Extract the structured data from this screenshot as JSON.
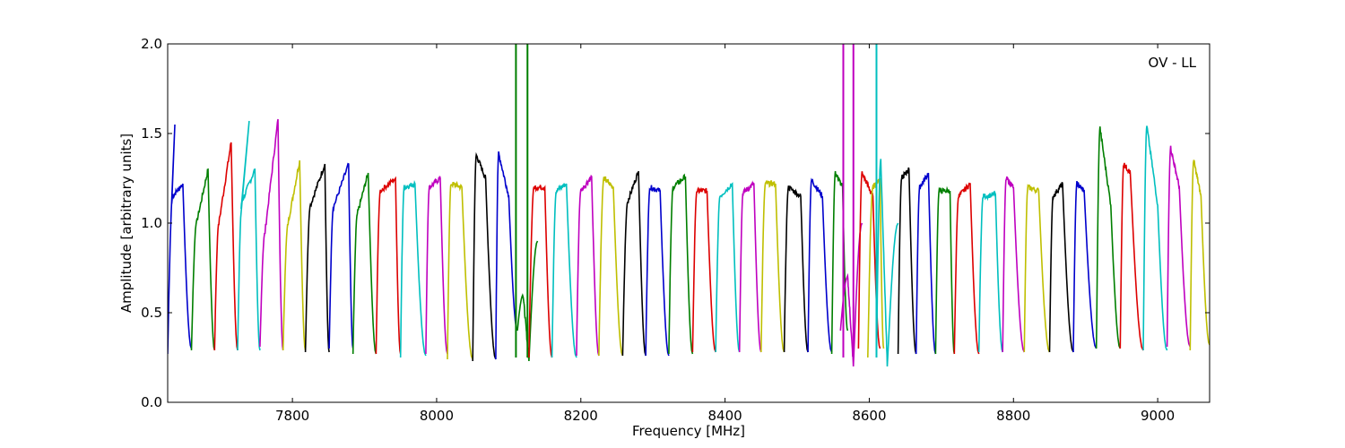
{
  "chart_data": {
    "type": "line",
    "title": "",
    "annotation": "OV - LL",
    "xlabel": "Frequency [MHz]",
    "ylabel": "Amplitude [arbitrary units]",
    "xlim": [
      7627,
      9072
    ],
    "ylim": [
      0.0,
      2.0
    ],
    "xticks": [
      7800,
      8000,
      8200,
      8400,
      8600,
      8800,
      9000
    ],
    "yticks": [
      0.0,
      0.5,
      1.0,
      1.5,
      2.0
    ],
    "xtick_labels": [
      "7800",
      "8000",
      "8200",
      "8400",
      "8600",
      "8800",
      "9000"
    ],
    "ytick_labels": [
      "0.0",
      "0.5",
      "1.0",
      "1.5",
      "2.0"
    ],
    "grid": false,
    "legend": "none",
    "colors": {
      "blue": "#0000cc",
      "green": "#007f00",
      "red": "#dd0000",
      "cyan": "#00bfbf",
      "magenta": "#bf00bf",
      "yellow": "#bfbf00",
      "black": "#000000",
      "grey": "#aaaaaa"
    },
    "series": [
      {
        "color": "blue",
        "x": [
          7627,
          7634,
          7648,
          7660
        ],
        "y": [
          0.27,
          1.15,
          1.22,
          0.3
        ],
        "peak": [
          7637,
          1.55
        ]
      },
      {
        "color": "green",
        "x": [
          7660,
          7667,
          7683,
          7692
        ],
        "y": [
          0.29,
          1.0,
          1.3,
          0.29
        ]
      },
      {
        "color": "red",
        "x": [
          7692,
          7698,
          7715,
          7724
        ],
        "y": [
          0.29,
          1.0,
          1.45,
          0.29
        ]
      },
      {
        "color": "cyan",
        "x": [
          7724,
          7730,
          7748,
          7755
        ],
        "y": [
          0.29,
          1.12,
          1.3,
          0.29
        ],
        "peak": [
          7740,
          1.57
        ]
      },
      {
        "color": "magenta",
        "x": [
          7755,
          7762,
          7780,
          7787
        ],
        "y": [
          0.31,
          0.95,
          1.58,
          0.29
        ]
      },
      {
        "color": "yellow",
        "x": [
          7787,
          7794,
          7810,
          7818
        ],
        "y": [
          0.29,
          1.0,
          1.35,
          0.29
        ]
      },
      {
        "color": "black",
        "x": [
          7818,
          7825,
          7845,
          7851
        ],
        "y": [
          0.28,
          1.1,
          1.33,
          0.28
        ]
      },
      {
        "color": "blue",
        "x": [
          7851,
          7857,
          7878,
          7884
        ],
        "y": [
          0.3,
          1.09,
          1.33,
          0.3
        ]
      },
      {
        "color": "green",
        "x": [
          7884,
          7890,
          7905,
          7916
        ],
        "y": [
          0.27,
          1.05,
          1.28,
          0.27
        ]
      },
      {
        "color": "red",
        "x": [
          7916,
          7922,
          7943,
          7950
        ],
        "y": [
          0.27,
          1.18,
          1.25,
          0.27
        ]
      },
      {
        "color": "cyan",
        "x": [
          7950,
          7955,
          7970,
          7985
        ],
        "y": [
          0.25,
          1.2,
          1.22,
          0.26
        ]
      },
      {
        "color": "magenta",
        "x": [
          7985,
          7990,
          8005,
          8015
        ],
        "y": [
          0.27,
          1.2,
          1.25,
          0.27
        ]
      },
      {
        "color": "yellow",
        "x": [
          8015,
          8020,
          8035,
          8050
        ],
        "y": [
          0.24,
          1.22,
          1.2,
          0.24
        ]
      },
      {
        "color": "black",
        "x": [
          8050,
          8055,
          8068,
          8082
        ],
        "y": [
          0.23,
          1.38,
          1.25,
          0.24
        ]
      },
      {
        "color": "blue",
        "x": [
          8082,
          8086,
          8100,
          8112
        ],
        "y": [
          0.24,
          1.39,
          1.15,
          0.4
        ]
      },
      {
        "color": "green",
        "x": [
          8112,
          8120,
          8128,
          8140
        ],
        "y": [
          0.4,
          0.6,
          0.23,
          0.9
        ],
        "spikes": [
          8110,
          8126
        ]
      },
      {
        "color": "red",
        "x": [
          8128,
          8135,
          8150,
          8160
        ],
        "y": [
          0.25,
          1.2,
          1.2,
          0.25
        ]
      },
      {
        "color": "cyan",
        "x": [
          8160,
          8166,
          8180,
          8194
        ],
        "y": [
          0.25,
          1.18,
          1.22,
          0.25
        ]
      },
      {
        "color": "magenta",
        "x": [
          8194,
          8200,
          8215,
          8225
        ],
        "y": [
          0.26,
          1.18,
          1.26,
          0.26
        ]
      },
      {
        "color": "yellow",
        "x": [
          8225,
          8232,
          8245,
          8258
        ],
        "y": [
          0.26,
          1.25,
          1.2,
          0.26
        ]
      },
      {
        "color": "black",
        "x": [
          8258,
          8265,
          8280,
          8290
        ],
        "y": [
          0.26,
          1.12,
          1.29,
          0.26
        ]
      },
      {
        "color": "blue",
        "x": [
          8290,
          8296,
          8310,
          8322
        ],
        "y": [
          0.26,
          1.2,
          1.18,
          0.26
        ]
      },
      {
        "color": "green",
        "x": [
          8322,
          8328,
          8345,
          8355
        ],
        "y": [
          0.27,
          1.2,
          1.26,
          0.27
        ]
      },
      {
        "color": "red",
        "x": [
          8355,
          8361,
          8375,
          8387
        ],
        "y": [
          0.28,
          1.18,
          1.18,
          0.28
        ]
      },
      {
        "color": "cyan",
        "x": [
          8387,
          8393,
          8410,
          8420
        ],
        "y": [
          0.28,
          1.15,
          1.22,
          0.28
        ]
      },
      {
        "color": "magenta",
        "x": [
          8420,
          8425,
          8440,
          8450
        ],
        "y": [
          0.28,
          1.17,
          1.22,
          0.28
        ]
      },
      {
        "color": "yellow",
        "x": [
          8450,
          8456,
          8470,
          8482
        ],
        "y": [
          0.28,
          1.22,
          1.22,
          0.28
        ]
      },
      {
        "color": "black",
        "x": [
          8482,
          8488,
          8505,
          8515
        ],
        "y": [
          0.28,
          1.2,
          1.15,
          0.28
        ]
      },
      {
        "color": "blue",
        "x": [
          8515,
          8520,
          8535,
          8548
        ],
        "y": [
          0.28,
          1.24,
          1.15,
          0.28
        ]
      },
      {
        "color": "green",
        "x": [
          8548,
          8553,
          8563,
          8570
        ],
        "y": [
          0.27,
          1.28,
          1.2,
          0.4
        ]
      },
      {
        "color": "magenta",
        "x": [
          8560,
          8570,
          8578,
          8590
        ],
        "y": [
          0.4,
          0.7,
          0.2,
          1.0
        ],
        "spikes": [
          8564,
          8578
        ]
      },
      {
        "color": "red",
        "x": [
          8585,
          8590,
          8605,
          8615
        ],
        "y": [
          0.3,
          1.28,
          1.15,
          0.3
        ]
      },
      {
        "color": "yellow",
        "x": [
          8598,
          8605,
          8615,
          8620
        ],
        "y": [
          0.25,
          1.2,
          1.25,
          0.3
        ]
      },
      {
        "color": "cyan",
        "x": [
          8610,
          8616,
          8625,
          8640
        ],
        "y": [
          0.25,
          1.35,
          0.2,
          1.0
        ],
        "spikes": [
          8610
        ]
      },
      {
        "color": "black",
        "x": [
          8640,
          8645,
          8655,
          8665
        ],
        "y": [
          0.27,
          1.25,
          1.3,
          0.27
        ]
      },
      {
        "color": "blue",
        "x": [
          8665,
          8670,
          8682,
          8692
        ],
        "y": [
          0.27,
          1.2,
          1.28,
          0.27
        ]
      },
      {
        "color": "green",
        "x": [
          8692,
          8697,
          8712,
          8718
        ],
        "y": [
          0.27,
          1.18,
          1.18,
          0.27
        ]
      },
      {
        "color": "red",
        "x": [
          8718,
          8724,
          8740,
          8752
        ],
        "y": [
          0.27,
          1.15,
          1.22,
          0.27
        ]
      },
      {
        "color": "cyan",
        "x": [
          8752,
          8758,
          8775,
          8785
        ],
        "y": [
          0.28,
          1.15,
          1.16,
          0.28
        ]
      },
      {
        "color": "magenta",
        "x": [
          8785,
          8790,
          8800,
          8815
        ],
        "y": [
          0.28,
          1.25,
          1.2,
          0.28
        ]
      },
      {
        "color": "yellow",
        "x": [
          8815,
          8820,
          8835,
          8850
        ],
        "y": [
          0.28,
          1.2,
          1.18,
          0.28
        ]
      },
      {
        "color": "black",
        "x": [
          8850,
          8855,
          8868,
          8883
        ],
        "y": [
          0.28,
          1.15,
          1.22,
          0.28
        ]
      },
      {
        "color": "blue",
        "x": [
          8883,
          8888,
          8898,
          8915
        ],
        "y": [
          0.28,
          1.22,
          1.18,
          0.3
        ]
      },
      {
        "color": "green",
        "x": [
          8915,
          8920,
          8935,
          8948
        ],
        "y": [
          0.3,
          1.53,
          1.1,
          0.3
        ]
      },
      {
        "color": "red",
        "x": [
          8948,
          8953,
          8962,
          8980
        ],
        "y": [
          0.3,
          1.33,
          1.28,
          0.29
        ]
      },
      {
        "color": "cyan",
        "x": [
          8980,
          8985,
          9000,
          9013
        ],
        "y": [
          0.29,
          1.54,
          1.1,
          0.29
        ]
      },
      {
        "color": "magenta",
        "x": [
          9013,
          9018,
          9030,
          9045
        ],
        "y": [
          0.31,
          1.42,
          1.2,
          0.31
        ]
      },
      {
        "color": "yellow",
        "x": [
          9045,
          9050,
          9060,
          9072
        ],
        "y": [
          0.29,
          1.35,
          1.15,
          0.32
        ]
      }
    ]
  }
}
